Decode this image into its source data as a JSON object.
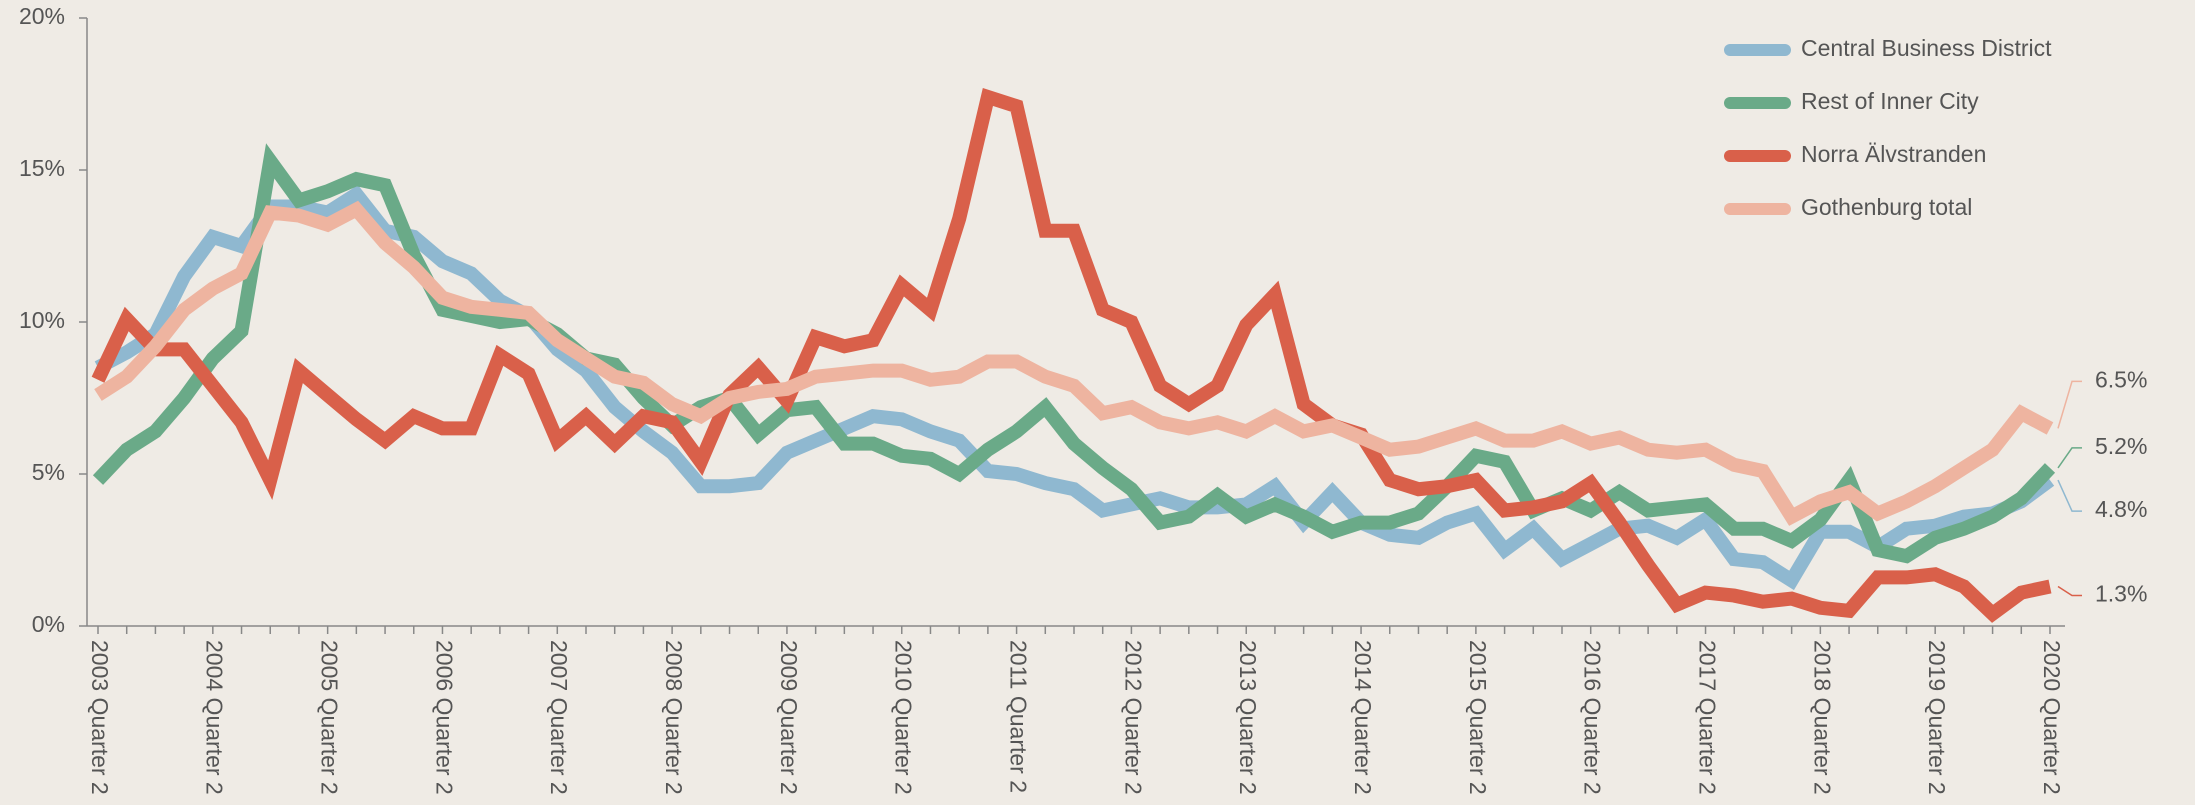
{
  "chart_data": {
    "type": "line",
    "categories": [
      "2003 Quarter 2",
      null,
      null,
      null,
      "2004 Quarter 2",
      null,
      null,
      null,
      "2005 Quarter 2",
      null,
      null,
      null,
      "2006 Quarter 2",
      null,
      null,
      null,
      "2007 Quarter 2",
      null,
      null,
      null,
      "2008 Quarter 2",
      null,
      null,
      null,
      "2009 Quarter 2",
      null,
      null,
      null,
      "2010 Quarter 2",
      null,
      null,
      null,
      "2011 Quarter 2",
      null,
      null,
      null,
      "2012 Quarter 2",
      null,
      null,
      null,
      "2013 Quarter 2",
      null,
      null,
      null,
      "2014 Quarter 2",
      null,
      null,
      null,
      "2015 Quarter 2",
      null,
      null,
      null,
      "2016 Quarter 2",
      null,
      null,
      null,
      "2017 Quarter 2",
      null,
      null,
      null,
      "2018 Quarter 2",
      null,
      null,
      null,
      "2019 Quarter 2",
      null,
      null,
      null,
      "2020 Quarter 2"
    ],
    "ylim": [
      0,
      20
    ],
    "yticks": [
      {
        "value": 0,
        "label": "0%"
      },
      {
        "value": 5,
        "label": "5%"
      },
      {
        "value": 10,
        "label": "10%"
      },
      {
        "value": 15,
        "label": "15%"
      },
      {
        "value": 20,
        "label": "20%"
      }
    ],
    "legend": "top-right",
    "series": [
      {
        "name": "Central Business District",
        "color": "#8fb8d0",
        "values": [
          8.5,
          9.0,
          9.6,
          11.5,
          12.8,
          12.5,
          13.8,
          13.8,
          13.6,
          14.2,
          13.0,
          12.8,
          12.0,
          11.6,
          10.7,
          10.2,
          9.1,
          8.4,
          7.2,
          6.4,
          5.7,
          4.6,
          4.6,
          4.7,
          5.7,
          6.1,
          6.5,
          6.9,
          6.8,
          6.4,
          6.1,
          5.1,
          5.0,
          4.7,
          4.5,
          3.8,
          4.0,
          4.2,
          3.9,
          3.9,
          4.0,
          4.6,
          3.4,
          4.4,
          3.4,
          3.0,
          2.9,
          3.4,
          3.7,
          2.5,
          3.2,
          2.2,
          2.7,
          3.2,
          3.3,
          2.9,
          3.5,
          2.2,
          2.1,
          1.5,
          3.1,
          3.1,
          2.6,
          3.2,
          3.3,
          3.6,
          3.7,
          4.1,
          4.8
        ],
        "value_labels": [
          null,
          null,
          null,
          null,
          null,
          null,
          null,
          null,
          null,
          null,
          null,
          null,
          null,
          null,
          null,
          null,
          null,
          null,
          null,
          null,
          null,
          null,
          null,
          null,
          null,
          null,
          null,
          null,
          null,
          null,
          null,
          null,
          null,
          null,
          null,
          null,
          null,
          null,
          null,
          null,
          null,
          null,
          null,
          null,
          null,
          null,
          null,
          null,
          null,
          null,
          null,
          null,
          null,
          null,
          null,
          null,
          null,
          null,
          null,
          null,
          null,
          null,
          null,
          null,
          null,
          null,
          null,
          null,
          "4.8%"
        ]
      },
      {
        "name": "Rest of Inner City",
        "color": "#6aaa88",
        "values": [
          4.8,
          5.8,
          6.4,
          7.5,
          8.8,
          9.7,
          15.3,
          14.0,
          14.3,
          14.7,
          14.5,
          12.2,
          10.4,
          10.2,
          10.0,
          10.1,
          9.6,
          8.8,
          8.6,
          7.5,
          6.6,
          7.2,
          7.5,
          6.3,
          7.1,
          7.2,
          6.0,
          6.0,
          5.6,
          5.5,
          5.0,
          5.8,
          6.4,
          7.2,
          6.0,
          5.2,
          4.5,
          3.4,
          3.6,
          4.3,
          3.6,
          4.0,
          3.6,
          3.1,
          3.4,
          3.4,
          3.7,
          4.6,
          5.6,
          5.4,
          3.8,
          4.2,
          3.8,
          4.4,
          3.8,
          3.9,
          4.0,
          3.2,
          3.2,
          2.8,
          3.5,
          4.8,
          2.5,
          2.3,
          2.9,
          3.2,
          3.6,
          4.2,
          5.2
        ],
        "value_labels": [
          null,
          null,
          null,
          null,
          null,
          null,
          null,
          null,
          null,
          null,
          null,
          null,
          null,
          null,
          null,
          null,
          null,
          null,
          null,
          null,
          null,
          null,
          null,
          null,
          null,
          null,
          null,
          null,
          null,
          null,
          null,
          null,
          null,
          null,
          null,
          null,
          null,
          null,
          null,
          null,
          null,
          null,
          null,
          null,
          null,
          null,
          null,
          null,
          null,
          null,
          null,
          null,
          null,
          null,
          null,
          null,
          null,
          null,
          null,
          null,
          null,
          null,
          null,
          null,
          null,
          null,
          null,
          null,
          "5.2%"
        ]
      },
      {
        "name": "Norra Älvstranden",
        "color": "#d9604a",
        "values": [
          8.1,
          10.1,
          9.1,
          9.1,
          7.9,
          6.7,
          4.8,
          8.4,
          7.6,
          6.8,
          6.1,
          6.9,
          6.5,
          6.5,
          8.9,
          8.3,
          6.1,
          6.9,
          6.0,
          6.9,
          6.7,
          5.4,
          7.6,
          8.5,
          7.4,
          9.5,
          9.2,
          9.4,
          11.2,
          10.4,
          13.4,
          17.4,
          17.1,
          13.0,
          13.0,
          10.4,
          10.0,
          7.9,
          7.3,
          7.9,
          9.9,
          10.9,
          7.3,
          6.6,
          6.3,
          4.8,
          4.5,
          4.6,
          4.8,
          3.8,
          3.9,
          4.1,
          4.7,
          3.4,
          2.0,
          0.7,
          1.1,
          1.0,
          0.8,
          0.9,
          0.6,
          0.5,
          1.6,
          1.6,
          1.7,
          1.3,
          0.4,
          1.1,
          1.3
        ],
        "value_labels": [
          null,
          null,
          null,
          null,
          null,
          null,
          null,
          null,
          null,
          null,
          null,
          null,
          null,
          null,
          null,
          null,
          null,
          null,
          null,
          null,
          null,
          null,
          null,
          null,
          null,
          null,
          null,
          null,
          null,
          null,
          null,
          null,
          null,
          null,
          null,
          null,
          null,
          null,
          null,
          null,
          null,
          null,
          null,
          null,
          null,
          null,
          null,
          null,
          null,
          null,
          null,
          null,
          null,
          null,
          null,
          null,
          null,
          null,
          null,
          null,
          null,
          null,
          null,
          null,
          null,
          null,
          null,
          null,
          "1.3%"
        ]
      },
      {
        "name": "Gothenburg total",
        "color": "#eeb4a0",
        "values": [
          7.6,
          8.2,
          9.2,
          10.4,
          11.1,
          11.6,
          13.6,
          13.5,
          13.2,
          13.7,
          12.6,
          11.8,
          10.8,
          10.5,
          10.4,
          10.3,
          9.4,
          8.8,
          8.2,
          8.0,
          7.3,
          6.9,
          7.5,
          7.7,
          7.8,
          8.2,
          8.3,
          8.4,
          8.4,
          8.1,
          8.2,
          8.7,
          8.7,
          8.2,
          7.9,
          7.0,
          7.2,
          6.7,
          6.5,
          6.7,
          6.4,
          6.9,
          6.4,
          6.6,
          6.2,
          5.8,
          5.9,
          6.2,
          6.5,
          6.1,
          6.1,
          6.4,
          6.0,
          6.2,
          5.8,
          5.7,
          5.8,
          5.3,
          5.1,
          3.6,
          4.1,
          4.4,
          3.7,
          4.1,
          4.6,
          5.2,
          5.8,
          7.0,
          6.5
        ],
        "value_labels": [
          null,
          null,
          null,
          null,
          null,
          null,
          null,
          null,
          null,
          null,
          null,
          null,
          null,
          null,
          null,
          null,
          null,
          null,
          null,
          null,
          null,
          null,
          null,
          null,
          null,
          null,
          null,
          null,
          null,
          null,
          null,
          null,
          null,
          null,
          null,
          null,
          null,
          null,
          null,
          null,
          null,
          null,
          null,
          null,
          null,
          null,
          null,
          null,
          null,
          null,
          null,
          null,
          null,
          null,
          null,
          null,
          null,
          null,
          null,
          null,
          null,
          null,
          null,
          null,
          null,
          null,
          null,
          null,
          "6.5%"
        ]
      }
    ]
  }
}
